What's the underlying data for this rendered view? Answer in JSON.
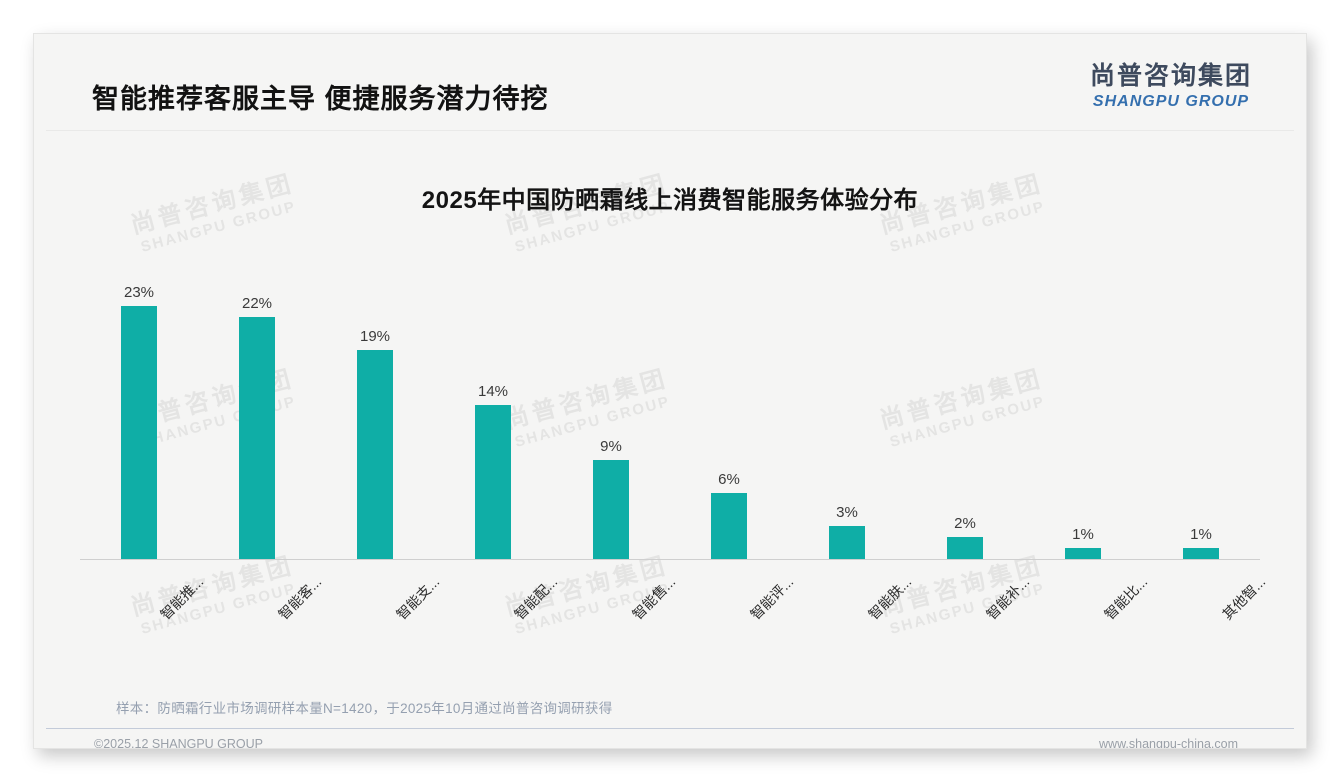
{
  "slide": {
    "title": "智能推荐客服主导 便捷服务潜力待挖",
    "logo": {
      "cn": "尚普咨询集团",
      "en": "SHANGPU GROUP"
    },
    "watermark": {
      "cn": "尚普咨询集团",
      "en": "SHANGPU GROUP"
    },
    "note": "样本：防晒霜行业市场调研样本量N=1420，于2025年10月通过尚普咨询调研获得",
    "footer_left": "©2025.12 SHANGPU GROUP",
    "footer_right": "www.shangpu-china.com"
  },
  "chart_data": {
    "type": "bar",
    "title": "2025年中国防晒霜线上消费智能服务体验分布",
    "categories": [
      "智能推...",
      "智能客...",
      "智能支...",
      "智能配...",
      "智能售...",
      "智能评...",
      "智能肤...",
      "智能补...",
      "智能比...",
      "其他智..."
    ],
    "values": [
      23,
      22,
      19,
      14,
      9,
      6,
      3,
      2,
      1,
      1
    ],
    "unit": "%",
    "bar_color": "#0FAEA6",
    "label_color": "#3a3a3a",
    "ylim": [
      0,
      25
    ],
    "grid": false,
    "legend": false,
    "data_labels": true
  }
}
